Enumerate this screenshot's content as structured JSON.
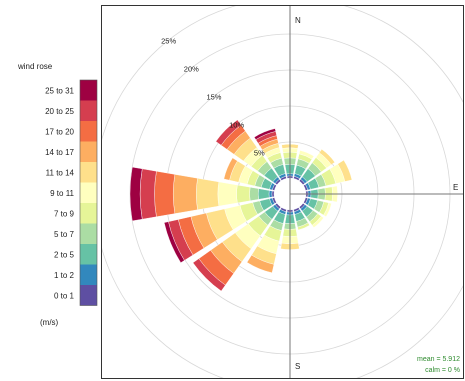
{
  "chart_data": {
    "type": "wind_rose",
    "legend_title": "wind rose",
    "legend_unit": "(m/s)",
    "speed_bins": [
      "0 to 1",
      "1 to 2",
      "2 to 5",
      "5 to 7",
      "7 to 9",
      "9 to 11",
      "11 to 14",
      "14 to 17",
      "17 to 20",
      "20 to 25",
      "25 to 31"
    ],
    "colors": [
      "#5e4fa2",
      "#3288bd",
      "#66c2a5",
      "#abdda4",
      "#e6f598",
      "#ffffbf",
      "#fee08b",
      "#fdae61",
      "#f46d43",
      "#d53e4f",
      "#9e0142"
    ],
    "directions": [
      "N",
      "NNE",
      "NE",
      "ENE",
      "E",
      "ESE",
      "SE",
      "SSE",
      "S",
      "SSW",
      "SW",
      "WSW",
      "W",
      "WNW",
      "NW",
      "NNW"
    ],
    "direction_labels": {
      "N": "N",
      "E": "E",
      "S": "S"
    },
    "ring_labels": [
      "5%",
      "10%",
      "15%",
      "20%",
      "25%"
    ],
    "rings": [
      5,
      10,
      15,
      20,
      25
    ],
    "max_percent": 25,
    "frequencies": [
      [
        0.3,
        0.3,
        1.3,
        0.9,
        0.8,
        0.6,
        0.5,
        0,
        0,
        0,
        0
      ],
      [
        0.3,
        0.4,
        1.2,
        0.9,
        0.7,
        0.5,
        0,
        0,
        0,
        0,
        0
      ],
      [
        0.3,
        0.4,
        1.4,
        1.0,
        0.9,
        0.8,
        0.6,
        0,
        0,
        0,
        0
      ],
      [
        0.3,
        0.4,
        1.2,
        1.0,
        1.4,
        1.3,
        1.0,
        0,
        0,
        0,
        0
      ],
      [
        0.3,
        0.4,
        1.0,
        1.0,
        1.0,
        0.7,
        0,
        0,
        0,
        0,
        0
      ],
      [
        0.3,
        0.4,
        1.0,
        0.9,
        0.7,
        0.4,
        0,
        0,
        0,
        0,
        0
      ],
      [
        0.3,
        0.4,
        1.0,
        0.8,
        0.6,
        0.4,
        0,
        0,
        0,
        0,
        0
      ],
      [
        0.3,
        0.4,
        1.0,
        0.8,
        0.4,
        0,
        0,
        0,
        0,
        0,
        0
      ],
      [
        0.3,
        0.4,
        1.2,
        0.8,
        1.0,
        1.0,
        0.8,
        0,
        0,
        0,
        0
      ],
      [
        0.3,
        0.4,
        1.3,
        1.0,
        1.5,
        1.8,
        1.5,
        1.2,
        0,
        0,
        0
      ],
      [
        0.3,
        0.4,
        1.4,
        1.0,
        1.8,
        2.2,
        2.2,
        2.0,
        2.0,
        1.0,
        0
      ],
      [
        0.3,
        0.4,
        1.4,
        1.0,
        1.8,
        2.2,
        2.6,
        2.2,
        1.8,
        1.4,
        0.6
      ],
      [
        0.3,
        0.4,
        1.5,
        1.2,
        1.8,
        2.6,
        3.0,
        3.2,
        2.6,
        2.0,
        1.4
      ],
      [
        0.3,
        0.4,
        1.2,
        0.9,
        1.1,
        1.2,
        1.3,
        0.8,
        0,
        0,
        0
      ],
      [
        0.3,
        0.4,
        1.5,
        1.1,
        1.1,
        1.3,
        1.6,
        1.2,
        1.0,
        0.9,
        0
      ],
      [
        0.3,
        0.4,
        1.3,
        0.9,
        0.8,
        0.7,
        0.6,
        0.6,
        0.5,
        0.6,
        0.4
      ]
    ],
    "calm_percent": 0,
    "stats": {
      "mean": "mean = 5.912",
      "calm": "calm = 0 %"
    }
  }
}
